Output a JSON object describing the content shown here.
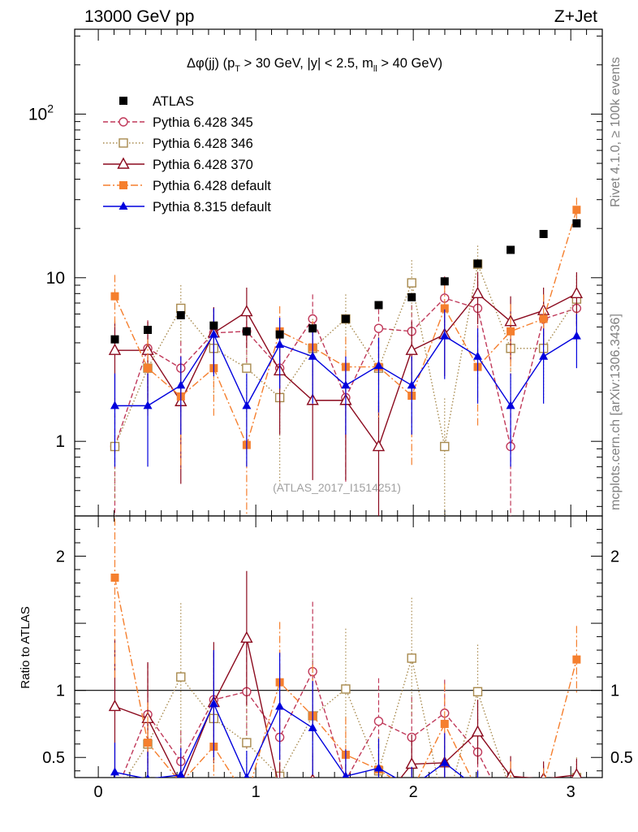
{
  "header": {
    "left_title": "13000 GeV pp",
    "right_title": "Z+Jet"
  },
  "side": {
    "rivet": "Rivet 4.1.0, ≥ 100k events",
    "mcplots": "mcplots.cern.ch [arXiv:1306.3436]"
  },
  "colors": {
    "ATLAS": "#000000",
    "Pythia 6.428 345": "#c0395a",
    "Pythia 6.428 346": "#a88a4e",
    "Pythia 6.428 370": "#8b0a1e",
    "Pythia 6.428 default": "#f57f2e",
    "Pythia 8.315 default": "#0000dd"
  },
  "chart_data": {
    "type": "scatter",
    "title": "Δφ(jj) (p_T > 30 GeV, |y| < 2.5, m_ll > 40 GeV)",
    "title_parts": {
      "a": "Δφ(jj) (p",
      "a_sub": "T",
      "b": " > 30 GeV, |y| < 2.5, m",
      "b_sub": "ll",
      "c": " > 40 GeV)"
    },
    "watermark": "(ATLAS_2017_I1514251)",
    "xlim": [
      -0.15,
      3.2
    ],
    "ylim_main": [
      0.35,
      330
    ],
    "ylim_ratio": [
      0.35,
      2.3
    ],
    "main_y_scale": "log",
    "main_yticks": [
      {
        "v": 1,
        "label": "1"
      },
      {
        "v": 10,
        "label": "10"
      },
      {
        "v": 100,
        "label": "10",
        "sup": "2"
      }
    ],
    "ratio_yticks": [
      {
        "v": 0.5,
        "label": "0.5"
      },
      {
        "v": 1,
        "label": "1"
      },
      {
        "v": 2,
        "label": "2"
      }
    ],
    "xticks": [
      {
        "v": 0,
        "label": "0"
      },
      {
        "v": 1,
        "label": "1"
      },
      {
        "v": 2,
        "label": "2"
      },
      {
        "v": 3,
        "label": "3"
      }
    ],
    "ratio_ylabel": "Ratio to ATLAS",
    "legend_position": "top-left",
    "x": [
      0.105,
      0.314,
      0.524,
      0.733,
      0.942,
      1.152,
      1.361,
      1.571,
      1.78,
      1.99,
      2.199,
      2.409,
      2.618,
      2.827,
      3.037
    ],
    "series": [
      {
        "name": "ATLAS",
        "style": "data",
        "marker": "square-filled",
        "values": [
          4.2,
          4.8,
          5.9,
          5.1,
          4.7,
          4.5,
          4.9,
          5.6,
          6.8,
          7.6,
          9.5,
          12.2,
          14.8,
          18.5,
          21.5
        ]
      },
      {
        "name": "Pythia 6.428 345",
        "style": "dashed",
        "marker": "circle-open",
        "values": [
          0.93,
          3.7,
          2.8,
          4.6,
          4.7,
          2.8,
          5.6,
          1.85,
          4.9,
          4.7,
          7.5,
          6.5,
          0.93,
          5.6,
          6.5
        ],
        "errors": [
          0.9,
          1.8,
          1.3,
          2.0,
          2.0,
          1.3,
          2.3,
          1.3,
          2.2,
          2.1,
          2.7,
          3.0,
          0.9,
          2.3,
          2.5
        ],
        "ratio": [
          0.22,
          0.82,
          0.47,
          0.93,
          0.99,
          0.65,
          1.14,
          0.33,
          0.77,
          0.65,
          0.83,
          0.54,
          0.06,
          0.31,
          0.3
        ],
        "ratio_err": [
          0.21,
          0.38,
          0.23,
          0.35,
          0.42,
          0.31,
          0.52,
          0.23,
          0.32,
          0.3,
          0.25,
          0.25,
          0.06,
          0.13,
          0.12
        ]
      },
      {
        "name": "Pythia 6.428 346",
        "style": "dotted",
        "marker": "square-open",
        "values": [
          0.93,
          2.8,
          6.5,
          3.7,
          2.8,
          1.85,
          3.7,
          5.6,
          2.8,
          9.3,
          0.93,
          12.1,
          3.7,
          3.7,
          7.4
        ],
        "errors": [
          0.5,
          1.3,
          2.5,
          1.8,
          1.4,
          1.3,
          1.9,
          2.3,
          1.5,
          3.5,
          0.9,
          3.6,
          1.9,
          1.9,
          2.9
        ],
        "ratio": [
          0.22,
          0.6,
          1.1,
          0.79,
          0.61,
          0.36,
          0.81,
          1.01,
          0.4,
          1.24,
          0.1,
          0.99,
          0.25,
          0.2,
          0.35
        ],
        "ratio_err": [
          0.12,
          0.28,
          0.55,
          0.4,
          0.35,
          0.3,
          0.45,
          0.45,
          0.25,
          0.45,
          0.08,
          0.35,
          0.15,
          0.12,
          0.15
        ]
      },
      {
        "name": "Pythia 6.428 370",
        "style": "solid",
        "marker": "triangle-open",
        "values": [
          3.6,
          3.6,
          1.75,
          4.6,
          6.2,
          2.7,
          1.78,
          1.78,
          0.93,
          3.6,
          4.5,
          8.0,
          5.4,
          6.3,
          8.0
        ],
        "errors": [
          1.8,
          1.8,
          1.2,
          2.0,
          2.5,
          1.6,
          1.2,
          1.2,
          0.85,
          1.8,
          2.0,
          2.8,
          2.3,
          2.4,
          2.8
        ],
        "ratio": [
          0.88,
          0.79,
          0.3,
          0.91,
          1.39,
          0.26,
          0.33,
          0.3,
          0.14,
          0.45,
          0.46,
          0.69,
          0.36,
          0.34,
          0.37
        ],
        "ratio_err": [
          0.5,
          0.42,
          0.2,
          0.45,
          0.5,
          0.2,
          0.2,
          0.15,
          0.12,
          0.22,
          0.2,
          0.24,
          0.15,
          0.13,
          0.12
        ]
      },
      {
        "name": "Pythia 6.428 default",
        "style": "dashdot",
        "marker": "square-filled",
        "values": [
          7.7,
          2.8,
          1.88,
          2.8,
          0.95,
          4.7,
          3.75,
          2.85,
          2.85,
          1.9,
          6.5,
          2.85,
          4.7,
          5.6,
          26.0
        ],
        "errors": [
          2.7,
          1.4,
          1.2,
          1.4,
          0.7,
          2.0,
          1.7,
          1.5,
          1.5,
          1.2,
          2.5,
          1.6,
          2.2,
          2.3,
          4.8
        ],
        "ratio": [
          1.84,
          0.61,
          0.31,
          0.58,
          0.2,
          1.06,
          0.81,
          0.52,
          0.41,
          0.25,
          0.75,
          0.25,
          0.32,
          0.3,
          1.23
        ],
        "ratio_err": [
          0.75,
          0.3,
          0.2,
          0.28,
          0.15,
          0.45,
          0.38,
          0.28,
          0.22,
          0.16,
          0.3,
          0.14,
          0.15,
          0.12,
          0.25
        ]
      },
      {
        "name": "Pythia 8.315 default",
        "style": "solid",
        "marker": "triangle-filled",
        "values": [
          1.65,
          1.65,
          2.2,
          4.5,
          1.65,
          3.9,
          3.3,
          2.2,
          2.9,
          2.2,
          4.4,
          3.3,
          1.65,
          3.3,
          4.4
        ],
        "errors": [
          0.95,
          0.95,
          1.1,
          2.0,
          0.95,
          1.8,
          1.6,
          1.1,
          1.4,
          1.1,
          2.0,
          1.6,
          0.95,
          1.6,
          1.6
        ],
        "ratio": [
          0.39,
          0.34,
          0.37,
          0.9,
          0.35,
          0.88,
          0.72,
          0.36,
          0.42,
          0.28,
          0.46,
          0.27,
          0.11,
          0.18,
          0.2
        ],
        "ratio_err": [
          0.22,
          0.2,
          0.2,
          0.4,
          0.2,
          0.4,
          0.35,
          0.2,
          0.22,
          0.15,
          0.22,
          0.13,
          0.07,
          0.09,
          0.08
        ]
      }
    ]
  }
}
